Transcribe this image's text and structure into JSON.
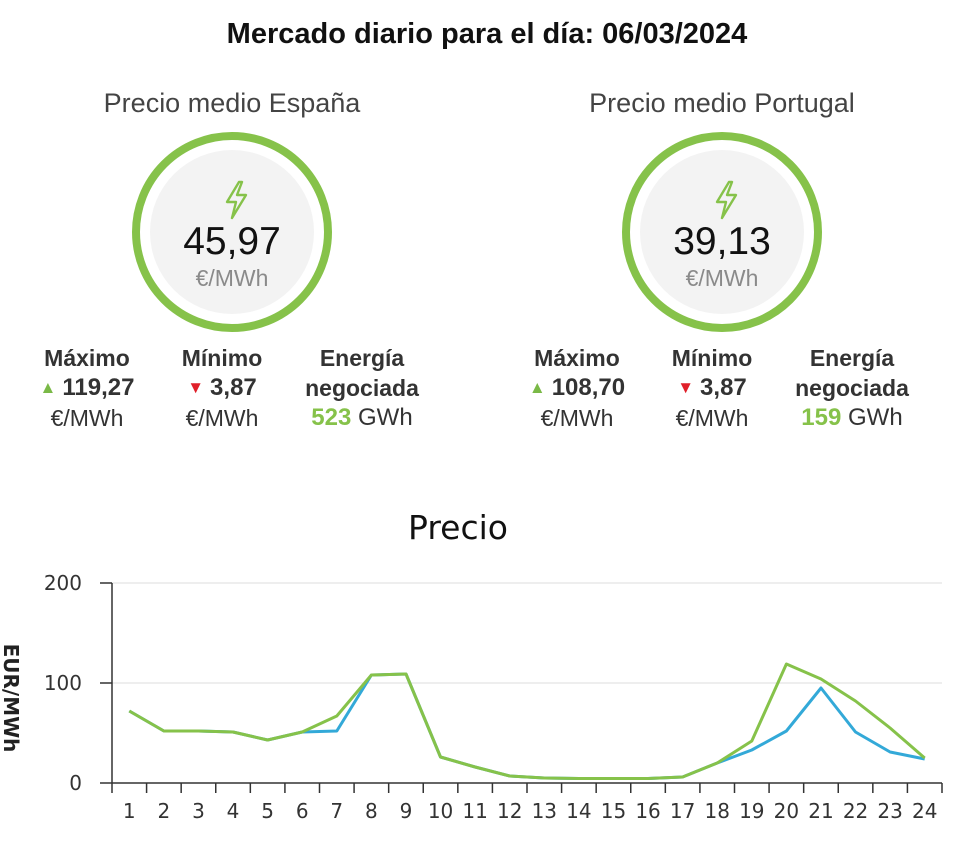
{
  "title": "Mercado diario para el día: 06/03/2024",
  "panels": [
    {
      "heading": "Precio medio España",
      "price": "45,97",
      "unit": "€/MWh",
      "max_label": "Máximo",
      "max_value": "119,27",
      "max_unit": "€/MWh",
      "min_label": "Mínimo",
      "min_value": "3,87",
      "min_unit": "€/MWh",
      "energy_label_1": "Energía",
      "energy_label_2": "negociada",
      "energy_value": "523",
      "energy_unit": "GWh"
    },
    {
      "heading": "Precio medio Portugal",
      "price": "39,13",
      "unit": "€/MWh",
      "max_label": "Máximo",
      "max_value": "108,70",
      "max_unit": "€/MWh",
      "min_label": "Mínimo",
      "min_value": "3,87",
      "min_unit": "€/MWh",
      "energy_label_1": "Energía",
      "energy_label_2": "negociada",
      "energy_value": "159",
      "energy_unit": "GWh"
    }
  ],
  "icons": {
    "price_icon": "lightning-bolt-icon",
    "up_icon": "triangle-up-icon",
    "down_icon": "triangle-down-icon"
  },
  "colors": {
    "accent": "#86c24a",
    "up": "#7ab947",
    "down": "#e0202a",
    "series_es": "#86c24a",
    "series_pt": "#33a9d8"
  },
  "chart_data": {
    "type": "line",
    "title": "Precio",
    "ylabel": "EUR/MWh",
    "xlabel": "",
    "ylim": [
      0,
      200
    ],
    "yticks": [
      0,
      100,
      200
    ],
    "grid": true,
    "x": [
      1,
      2,
      3,
      4,
      5,
      6,
      7,
      8,
      9,
      10,
      11,
      12,
      13,
      14,
      15,
      16,
      17,
      18,
      19,
      20,
      21,
      22,
      23,
      24
    ],
    "series": [
      {
        "color": "#33a9d8",
        "values": [
          72,
          52,
          52,
          51,
          43,
          51,
          52,
          108,
          109,
          26,
          16,
          7,
          5,
          4.5,
          4.5,
          4.5,
          6,
          20,
          33,
          52,
          95,
          51,
          31,
          24
        ]
      },
      {
        "color": "#86c24a",
        "values": [
          72,
          52,
          52,
          51,
          43,
          51,
          67,
          108,
          109,
          26,
          16,
          7,
          5,
          4.5,
          4.5,
          4.5,
          6,
          20,
          42,
          119,
          104,
          82,
          55,
          25
        ]
      }
    ]
  }
}
